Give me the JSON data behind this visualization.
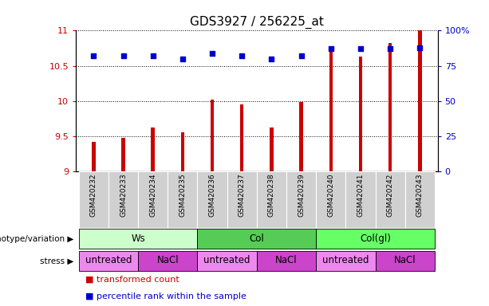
{
  "title": "GDS3927 / 256225_at",
  "samples": [
    "GSM420232",
    "GSM420233",
    "GSM420234",
    "GSM420235",
    "GSM420236",
    "GSM420237",
    "GSM420238",
    "GSM420239",
    "GSM420240",
    "GSM420241",
    "GSM420242",
    "GSM420243"
  ],
  "transformed_count": [
    9.42,
    9.48,
    9.62,
    9.55,
    10.02,
    9.95,
    9.62,
    9.98,
    10.75,
    10.63,
    10.82,
    11.0
  ],
  "percentile_rank": [
    82,
    82,
    82,
    80,
    84,
    82,
    80,
    82,
    87,
    87,
    87,
    88
  ],
  "bar_color": "#cc0000",
  "dot_color": "#0000cc",
  "ylim_left": [
    9.0,
    11.0
  ],
  "yticks_left": [
    9.0,
    9.5,
    10.0,
    10.5,
    11.0
  ],
  "yticklabels_left": [
    "9",
    "9.5",
    "10",
    "10.5",
    "11"
  ],
  "ylim_right": [
    0,
    100
  ],
  "yticks_right": [
    0,
    25,
    50,
    75,
    100
  ],
  "yticklabels_right": [
    "0",
    "25",
    "50",
    "75",
    "100%"
  ],
  "genotype_groups": [
    {
      "label": "Ws",
      "start": 0,
      "end": 3,
      "color": "#ccffcc"
    },
    {
      "label": "Col",
      "start": 4,
      "end": 7,
      "color": "#55cc55"
    },
    {
      "label": "Col(gl)",
      "start": 8,
      "end": 11,
      "color": "#66ff66"
    }
  ],
  "stress_groups": [
    {
      "label": "untreated",
      "start": 0,
      "end": 1,
      "color": "#ee88ee"
    },
    {
      "label": "NaCl",
      "start": 2,
      "end": 3,
      "color": "#cc44cc"
    },
    {
      "label": "untreated",
      "start": 4,
      "end": 5,
      "color": "#ee88ee"
    },
    {
      "label": "NaCl",
      "start": 6,
      "end": 7,
      "color": "#cc44cc"
    },
    {
      "label": "untreated",
      "start": 8,
      "end": 9,
      "color": "#ee88ee"
    },
    {
      "label": "NaCl",
      "start": 10,
      "end": 11,
      "color": "#cc44cc"
    }
  ],
  "legend_items": [
    {
      "label": "transformed count",
      "color": "#cc0000"
    },
    {
      "label": "percentile rank within the sample",
      "color": "#0000cc"
    }
  ],
  "sample_bg_color": "#d0d0d0",
  "background_color": "#ffffff",
  "genotype_label": "genotype/variation",
  "stress_label": "stress"
}
